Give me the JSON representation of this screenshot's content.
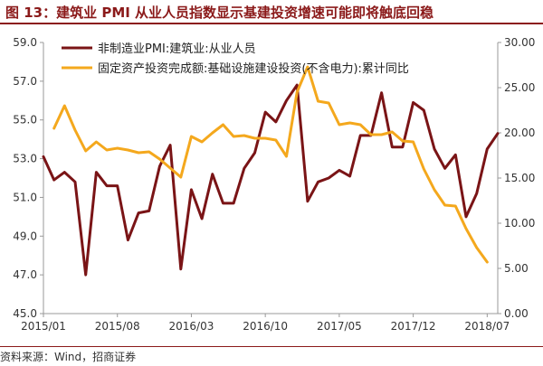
{
  "title": "图 13：建筑业 PMI 从业人员指数显示基建投资增速可能即将触底回稳",
  "source": "资料来源：Wind，招商证券",
  "colors": {
    "pmi": "#7a1416",
    "fai": "#f4a81d",
    "title": "#8b1a1a",
    "axis": "#999999",
    "text": "#333333"
  },
  "chart_data": {
    "type": "line",
    "x_tick_labels": [
      "2015/01",
      "2015/08",
      "2016/03",
      "2016/10",
      "2017/05",
      "2017/12",
      "2018/07"
    ],
    "y_left": {
      "ticks": [
        "45.0",
        "47.0",
        "49.0",
        "51.0",
        "53.0",
        "55.0",
        "57.0",
        "59.0"
      ],
      "range": [
        45,
        59
      ]
    },
    "y_right": {
      "ticks": [
        "0.00",
        "5.00",
        "10.00",
        "15.00",
        "20.00",
        "25.00",
        "30.00"
      ],
      "range": [
        0,
        30
      ]
    },
    "series": [
      {
        "name": "非制造业PMI:建筑业:从业人员",
        "axis": "left",
        "color": "#7a1416",
        "x": [
          "2015/01",
          "2015/02",
          "2015/03",
          "2015/04",
          "2015/05",
          "2015/06",
          "2015/07",
          "2015/08",
          "2015/09",
          "2015/10",
          "2015/11",
          "2015/12",
          "2016/01",
          "2016/02",
          "2016/03",
          "2016/04",
          "2016/05",
          "2016/06",
          "2016/07",
          "2016/08",
          "2016/09",
          "2016/10",
          "2016/11",
          "2016/12",
          "2017/01",
          "2017/02",
          "2017/03",
          "2017/04",
          "2017/05",
          "2017/06",
          "2017/07",
          "2017/08",
          "2017/09",
          "2017/10",
          "2017/11",
          "2017/12",
          "2018/01",
          "2018/02",
          "2018/03",
          "2018/04",
          "2018/05",
          "2018/06",
          "2018/07",
          "2018/08"
        ],
        "values": [
          53.1,
          51.9,
          52.3,
          51.8,
          47.0,
          52.3,
          51.6,
          51.6,
          48.8,
          50.2,
          50.3,
          52.6,
          53.7,
          47.3,
          51.4,
          49.9,
          52.2,
          50.7,
          50.7,
          52.5,
          53.3,
          55.4,
          54.9,
          56.0,
          56.8,
          50.8,
          51.8,
          52.0,
          52.4,
          52.1,
          54.2,
          54.2,
          56.4,
          53.6,
          53.6,
          55.9,
          55.5,
          53.5,
          52.5,
          53.2,
          50.0,
          51.2,
          53.5,
          54.3
        ]
      },
      {
        "name": "固定资产投资完成额:基础设施建设投资(不含电力):累计同比",
        "axis": "right",
        "color": "#f4a81d",
        "x": [
          "2015/02",
          "2015/03",
          "2015/04",
          "2015/05",
          "2015/06",
          "2015/07",
          "2015/08",
          "2015/09",
          "2015/10",
          "2015/11",
          "2015/12",
          "2016/01",
          "2016/02",
          "2016/03",
          "2016/04",
          "2016/05",
          "2016/06",
          "2016/07",
          "2016/08",
          "2016/09",
          "2016/10",
          "2016/11",
          "2016/12",
          "2017/01",
          "2017/02",
          "2017/03",
          "2017/04",
          "2017/05",
          "2017/06",
          "2017/07",
          "2017/08",
          "2017/09",
          "2017/10",
          "2017/11",
          "2017/12",
          "2018/01",
          "2018/02",
          "2018/03",
          "2018/04",
          "2018/05",
          "2018/06",
          "2018/07"
        ],
        "values": [
          20.5,
          23.0,
          20.3,
          18.0,
          19.0,
          18.1,
          18.3,
          18.1,
          17.8,
          17.9,
          17.1,
          16.1,
          15.1,
          19.6,
          19.0,
          20.0,
          20.9,
          19.6,
          19.7,
          19.4,
          19.4,
          19.2,
          17.4,
          24.5,
          27.3,
          23.5,
          23.3,
          20.9,
          21.1,
          20.9,
          19.8,
          19.8,
          20.1,
          19.1,
          19.0,
          16.0,
          13.7,
          12.0,
          11.9,
          9.4,
          7.3,
          5.7
        ]
      }
    ],
    "legend_position": "top-left",
    "grid": false
  }
}
